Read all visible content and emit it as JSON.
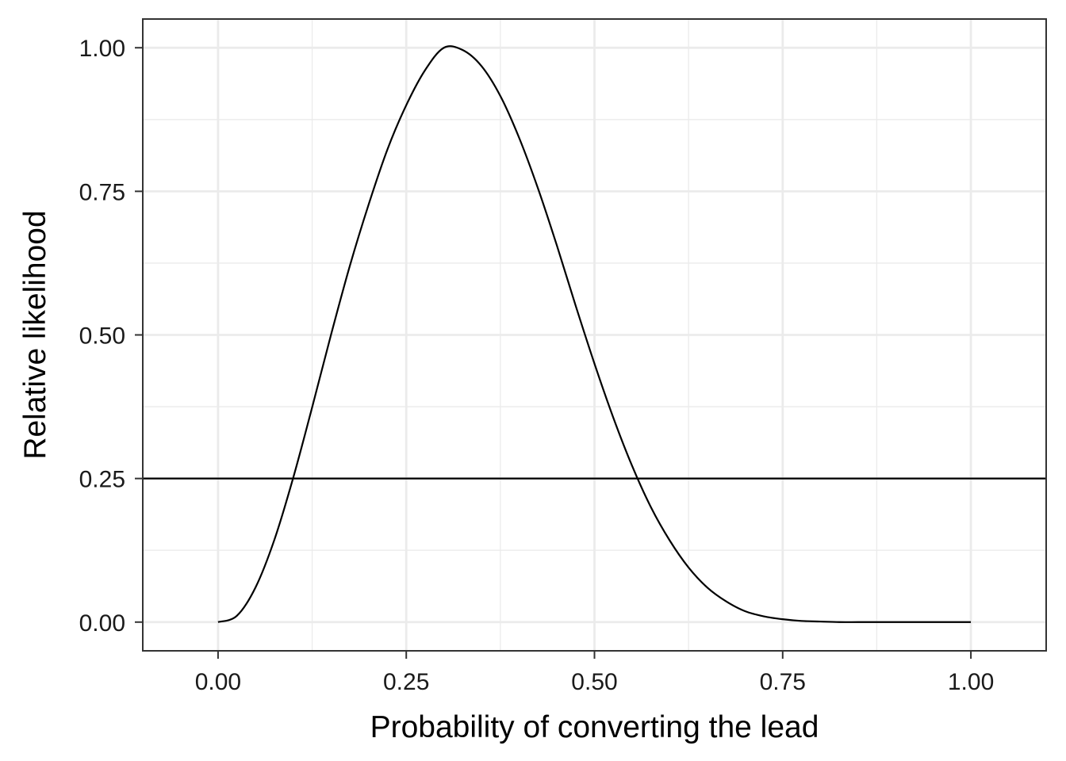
{
  "chart_data": {
    "type": "line",
    "title": "",
    "xlabel": "Probability of converting the lead",
    "ylabel": "Relative likelihood",
    "xlim": [
      -0.1,
      1.1
    ],
    "ylim": [
      -0.05,
      1.05
    ],
    "x_ticks": [
      0,
      0.25,
      0.5,
      0.75,
      1
    ],
    "x_tick_labels": [
      "0.00",
      "0.25",
      "0.50",
      "0.75",
      "1.00"
    ],
    "y_ticks": [
      0,
      0.25,
      0.5,
      0.75,
      1
    ],
    "y_tick_labels": [
      "0.00",
      "0.25",
      "0.50",
      "0.75",
      "1.00"
    ],
    "grid": true,
    "legend": "none",
    "line_color": "#000000",
    "grid_color": "#ebebeb",
    "panel_border_color": "#333333",
    "series": [
      {
        "x": [
          0,
          0.025,
          0.05,
          0.075,
          0.1,
          0.125,
          0.15,
          0.175,
          0.2,
          0.225,
          0.25,
          0.275,
          0.3,
          0.325,
          0.35,
          0.375,
          0.4,
          0.425,
          0.45,
          0.475,
          0.5,
          0.525,
          0.55,
          0.575,
          0.6,
          0.625,
          0.65,
          0.675,
          0.7,
          0.725,
          0.75,
          0.775,
          0.8,
          0.825,
          0.85,
          0.875,
          0.9,
          0.925,
          0.95,
          0.975,
          1
        ],
        "y": [
          0,
          0.011,
          0.061,
          0.144,
          0.252,
          0.374,
          0.5,
          0.62,
          0.727,
          0.823,
          0.9,
          0.961,
          1,
          0.996,
          0.968,
          0.916,
          0.843,
          0.755,
          0.656,
          0.551,
          0.45,
          0.356,
          0.272,
          0.2,
          0.142,
          0.095,
          0.06,
          0.036,
          0.019,
          0.01,
          0.005,
          0.002,
          0.001,
          0,
          0,
          0,
          0,
          0,
          0,
          0,
          0
        ]
      }
    ],
    "hlines": [
      0.25
    ]
  }
}
